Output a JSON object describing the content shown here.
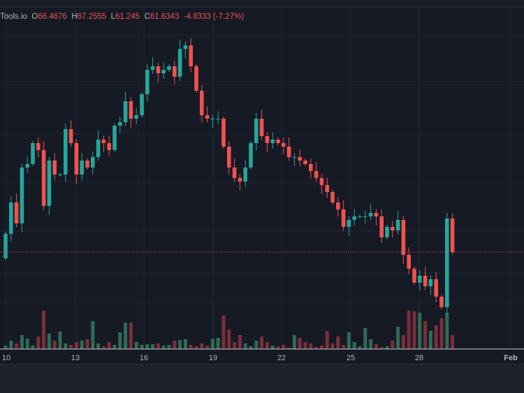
{
  "legend": {
    "symbol": "Tools.io",
    "o_label": "O",
    "o": "66.4676",
    "h_label": "H",
    "h": "67.2555",
    "l_label": "L",
    "l": "61.245",
    "c_label": "C",
    "c": "61.6343",
    "change": "-4.8333 (-7.27%)"
  },
  "colors": {
    "up": "#26a69a",
    "down": "#ef5350",
    "vol_up": "#2f6b57",
    "vol_down": "#7a2f3a",
    "bg": "#161a25",
    "grid": "#232734"
  },
  "chart_data": {
    "type": "candlestick",
    "x_ticks": [
      "10",
      "13",
      "16",
      "19",
      "22",
      "25",
      "28",
      "Feb"
    ],
    "first_open": 60.76,
    "closes": [
      64.26,
      68.76,
      65.76,
      73.76,
      74.26,
      77.26,
      76.26,
      68.26,
      74.76,
      72.76,
      72.76,
      79.26,
      77.26,
      72.76,
      74.76,
      73.76,
      75.26,
      77.76,
      77.26,
      76.26,
      79.76,
      80.26,
      83.26,
      80.76,
      81.26,
      84.26,
      87.76,
      88.26,
      87.26,
      87.76,
      88.26,
      86.76,
      90.76,
      91.26,
      88.26,
      84.76,
      81.26,
      80.76,
      80.76,
      80.76,
      76.76,
      73.76,
      72.26,
      71.76,
      73.76,
      77.26,
      80.76,
      78.26,
      77.26,
      77.76,
      77.26,
      76.76,
      75.26,
      75.26,
      74.76,
      74.26,
      73.26,
      72.26,
      71.26,
      70.26,
      68.76,
      67.76,
      65.26,
      66.26,
      66.76,
      66.76,
      66.76,
      67.26,
      66.76,
      63.76,
      65.26,
      64.76,
      66.26,
      61.26,
      59.26,
      57.26,
      58.26,
      56.76,
      57.76,
      55.26,
      53.76,
      66.4676,
      61.6343
    ],
    "last_candle": {
      "open": 66.4676,
      "high": 67.2555,
      "low": 61.245,
      "close": 61.6343
    },
    "volumes": [
      5,
      12,
      8,
      20,
      15,
      5,
      18,
      55,
      22,
      12,
      25,
      8,
      6,
      10,
      12,
      14,
      40,
      8,
      4,
      10,
      6,
      24,
      38,
      38,
      10,
      6,
      7,
      7,
      8,
      5,
      6,
      12,
      13,
      14,
      6,
      4,
      8,
      5,
      15,
      16,
      48,
      28,
      10,
      20,
      8,
      4,
      12,
      18,
      10,
      5,
      4,
      6,
      2,
      20,
      16,
      10,
      8,
      3,
      5,
      26,
      8,
      18,
      6,
      24,
      10,
      4,
      30,
      14,
      7,
      3,
      4,
      12,
      32,
      20,
      55,
      54,
      52,
      40,
      26,
      34,
      44,
      52,
      20
    ],
    "current_price_line": 61.6343
  }
}
